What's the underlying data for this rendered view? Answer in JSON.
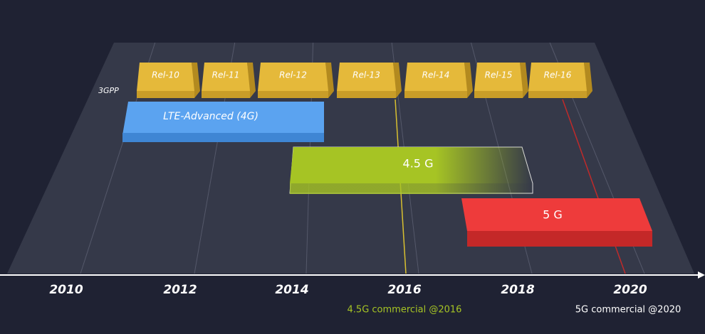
{
  "label_3gpp": "3GPP",
  "releases": [
    "Rel-10",
    "Rel-11",
    "Rel-12",
    "Rel-13",
    "Rel-14",
    "Rel-15",
    "Rel-16"
  ],
  "bars": [
    {
      "label": "LTE-Advanced (4G)"
    },
    {
      "label": "4.5 G"
    },
    {
      "label": "5 G"
    }
  ],
  "axis": {
    "years": [
      "2010",
      "2012",
      "2014",
      "2016",
      "2018",
      "2020"
    ]
  },
  "annotations": [
    "4.5G commercial @2016",
    "5G commercial @2020"
  ]
}
